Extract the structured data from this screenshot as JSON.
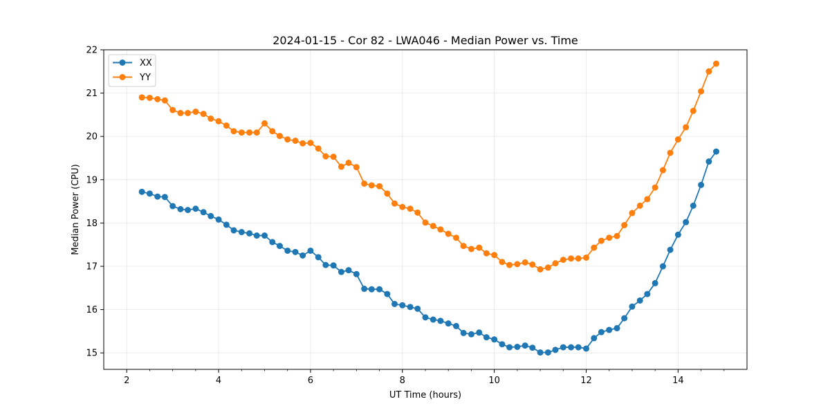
{
  "chart_data": {
    "type": "line",
    "title": "2024-01-15 - Cor 82 - LWA046 - Median Power vs. Time",
    "xlabel": "UT Time (hours)",
    "ylabel": "Median Power (CPU)",
    "xlim": [
      1.5,
      15.5
    ],
    "ylim": [
      14.62,
      22.0
    ],
    "xticks": [
      2,
      4,
      6,
      8,
      10,
      12,
      14
    ],
    "yticks": [
      15,
      16,
      17,
      18,
      19,
      20,
      21,
      22
    ],
    "xtick_labels": [
      "2",
      "4",
      "6",
      "8",
      "10",
      "12",
      "14"
    ],
    "ytick_labels": [
      "15",
      "16",
      "17",
      "18",
      "19",
      "20",
      "21",
      "22"
    ],
    "grid": true,
    "legend_position": "top-left",
    "x": [
      2.33,
      2.5,
      2.67,
      2.83,
      3.0,
      3.17,
      3.33,
      3.5,
      3.67,
      3.83,
      4.0,
      4.17,
      4.33,
      4.5,
      4.67,
      4.83,
      5.0,
      5.17,
      5.33,
      5.5,
      5.67,
      5.83,
      6.0,
      6.17,
      6.33,
      6.5,
      6.67,
      6.83,
      7.0,
      7.17,
      7.33,
      7.5,
      7.67,
      7.83,
      8.0,
      8.17,
      8.33,
      8.5,
      8.67,
      8.83,
      9.0,
      9.17,
      9.33,
      9.5,
      9.67,
      9.83,
      10.0,
      10.17,
      10.33,
      10.5,
      10.67,
      10.83,
      11.0,
      11.17,
      11.33,
      11.5,
      11.67,
      11.83,
      12.0,
      12.17,
      12.33,
      12.5,
      12.67,
      12.83,
      13.0,
      13.17,
      13.33,
      13.5,
      13.67,
      13.83,
      14.0,
      14.17,
      14.33,
      14.5,
      14.67,
      14.83
    ],
    "series": [
      {
        "name": "XX",
        "color": "#1f77b4",
        "values": [
          18.72,
          18.68,
          18.61,
          18.6,
          18.39,
          18.32,
          18.3,
          18.33,
          18.25,
          18.16,
          18.08,
          17.96,
          17.83,
          17.79,
          17.76,
          17.71,
          17.71,
          17.56,
          17.47,
          17.36,
          17.33,
          17.25,
          17.36,
          17.21,
          17.03,
          17.02,
          16.87,
          16.91,
          16.82,
          16.48,
          16.47,
          16.47,
          16.36,
          16.13,
          16.1,
          16.06,
          16.02,
          15.82,
          15.77,
          15.74,
          15.68,
          15.62,
          15.46,
          15.43,
          15.47,
          15.36,
          15.31,
          15.2,
          15.13,
          15.14,
          15.17,
          15.12,
          15.01,
          15.01,
          15.07,
          15.13,
          15.13,
          15.13,
          15.1,
          15.34,
          15.48,
          15.53,
          15.57,
          15.8,
          16.07,
          16.21,
          16.36,
          16.61,
          17.0,
          17.38,
          17.73,
          18.02,
          18.4,
          18.88,
          19.42,
          19.65
        ]
      },
      {
        "name": "YY",
        "color": "#ff7f0e",
        "values": [
          20.9,
          20.89,
          20.86,
          20.83,
          20.61,
          20.54,
          20.54,
          20.57,
          20.52,
          20.41,
          20.35,
          20.25,
          20.12,
          20.09,
          20.09,
          20.09,
          20.3,
          20.12,
          20.01,
          19.93,
          19.9,
          19.84,
          19.85,
          19.72,
          19.54,
          19.53,
          19.3,
          19.39,
          19.29,
          18.91,
          18.87,
          18.85,
          18.68,
          18.45,
          18.37,
          18.33,
          18.24,
          18.01,
          17.93,
          17.85,
          17.75,
          17.66,
          17.47,
          17.4,
          17.43,
          17.3,
          17.26,
          17.1,
          17.03,
          17.05,
          17.09,
          17.04,
          16.93,
          16.97,
          17.07,
          17.15,
          17.18,
          17.18,
          17.2,
          17.43,
          17.59,
          17.66,
          17.7,
          17.95,
          18.23,
          18.4,
          18.55,
          18.82,
          19.22,
          19.62,
          19.93,
          20.21,
          20.59,
          21.04,
          21.5,
          21.68
        ]
      }
    ]
  }
}
